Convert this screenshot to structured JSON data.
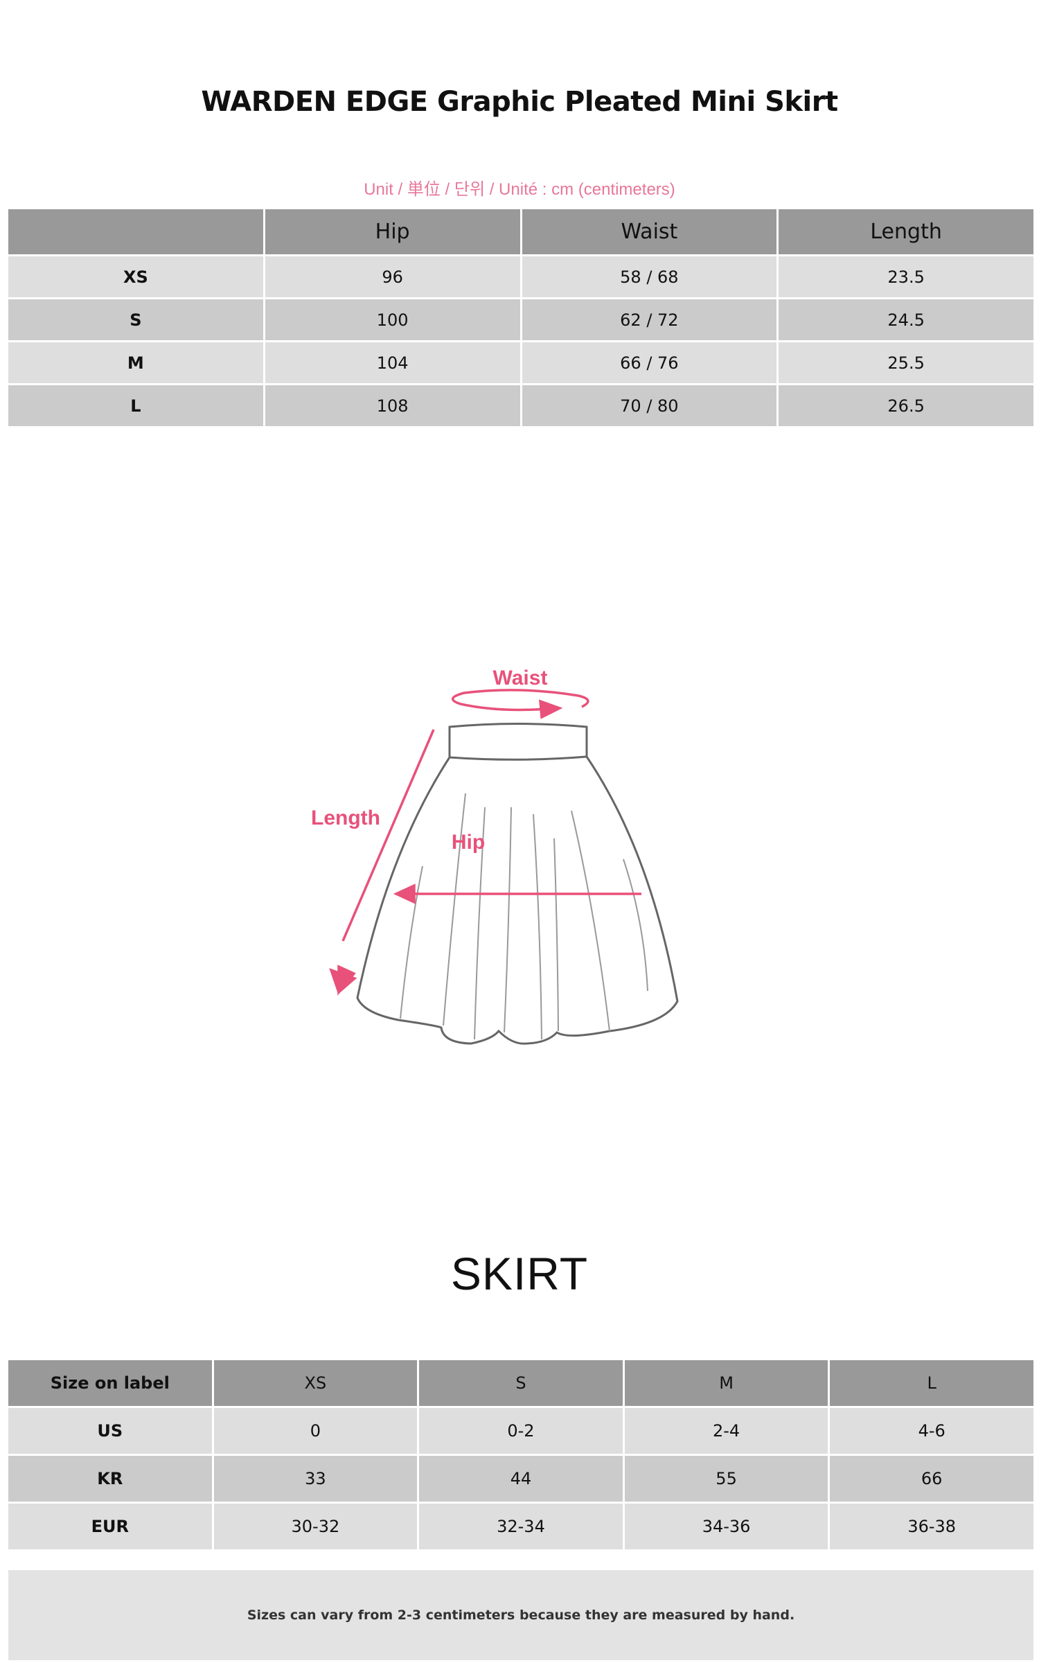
{
  "title": "WARDEN EDGE Graphic Pleated Mini Skirt",
  "unit_note": "Unit / 単位 / 단위 / Unité : cm (centimeters)",
  "measurements": {
    "headers": [
      "",
      "Hip",
      "Waist",
      "Length"
    ],
    "rows": [
      [
        "XS",
        "96",
        "58 / 68",
        "23.5"
      ],
      [
        "S",
        "100",
        "62 / 72",
        "24.5"
      ],
      [
        "M",
        "104",
        "66 / 76",
        "25.5"
      ],
      [
        "L",
        "108",
        "70 / 80",
        "26.5"
      ]
    ]
  },
  "diagram": {
    "waist_label": "Waist",
    "length_label": "Length",
    "hip_label": "Hip",
    "accent_color": "#e8517a"
  },
  "conversion": {
    "heading": "SKIRT",
    "headers": [
      "Size on label",
      "XS",
      "S",
      "M",
      "L"
    ],
    "rows": [
      [
        "US",
        "0",
        "0-2",
        "2-4",
        "4-6"
      ],
      [
        "KR",
        "33",
        "44",
        "55",
        "66"
      ],
      [
        "EUR",
        "30-32",
        "32-34",
        "34-36",
        "36-38"
      ]
    ]
  },
  "footnote": "Sizes can vary from 2-3 centimeters because they are measured by hand."
}
